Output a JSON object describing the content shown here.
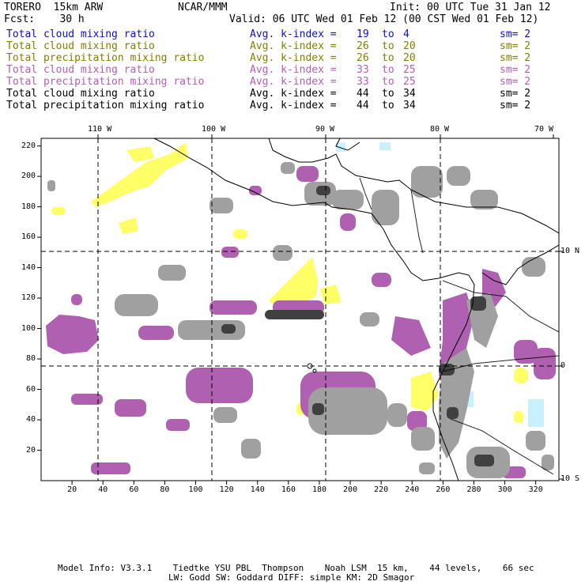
{
  "header": {
    "model": "TORERO  15km ARW",
    "center": "NCAR/MMM",
    "init": "Init: 00 UTC Tue 31 Jan 12",
    "fcst": "Fcst:    30 h",
    "valid": "Valid: 06 UTC Wed 01 Feb 12 (00 CST Wed 01 Feb 12)"
  },
  "legend": [
    {
      "field": "Total cloud mixing ratio",
      "k_label": "Avg. k-index =",
      "k_from": "19",
      "to": "to",
      "k_to": "4",
      "sm": "sm= 2",
      "color": "#1010c0"
    },
    {
      "field": "Total cloud mixing ratio",
      "k_label": "Avg. k-index =",
      "k_from": "26",
      "to": "to",
      "k_to": "20",
      "sm": "sm= 2",
      "color": "#808000"
    },
    {
      "field": "Total precipitation mixing ratio",
      "k_label": "Avg. k-index =",
      "k_from": "26",
      "to": "to",
      "k_to": "20",
      "sm": "sm= 2",
      "color": "#808000"
    },
    {
      "field": "Total cloud mixing ratio",
      "k_label": "Avg. k-index =",
      "k_from": "33",
      "to": "to",
      "k_to": "25",
      "sm": "sm= 2",
      "color": "#b060b0"
    },
    {
      "field": "Total precipitation mixing ratio",
      "k_label": "Avg. k-index =",
      "k_from": "33",
      "to": "to",
      "k_to": "25",
      "sm": "sm= 2",
      "color": "#b060b0"
    },
    {
      "field": "Total cloud mixing ratio",
      "k_label": "Avg. k-index =",
      "k_from": "44",
      "to": "to",
      "k_to": "34",
      "sm": "sm= 2",
      "color": "#000000"
    },
    {
      "field": "Total precipitation mixing ratio",
      "k_label": "Avg. k-index =",
      "k_from": "44",
      "to": "to",
      "k_to": "34",
      "sm": "sm= 2",
      "color": "#000000"
    }
  ],
  "axes": {
    "x_ticks": [
      "20",
      "40",
      "60",
      "80",
      "100",
      "120",
      "140",
      "160",
      "180",
      "200",
      "220",
      "240",
      "260",
      "280",
      "300",
      "320"
    ],
    "y_ticks": [
      "20",
      "40",
      "60",
      "80",
      "100",
      "120",
      "140",
      "160",
      "180",
      "200",
      "220"
    ],
    "lon_labels": [
      "110 W",
      "100 W",
      "90 W",
      "80 W",
      "70 W"
    ],
    "lat_labels": [
      "10 N",
      "0",
      "10 S"
    ]
  },
  "footer": {
    "line1": "Model Info: V3.3.1    Tiedtke YSU PBL  Thompson    Noah LSM  15 km,    44 levels,    66 sec",
    "line2": "LW: Godd SW: Goddard DIFF: simple KM: 2D Smagor"
  },
  "colors": {
    "yellow": "#ffff66",
    "purple": "#b060b0",
    "gray": "#a0a0a0",
    "dark": "#404040",
    "cyan": "#c8f0ff"
  }
}
